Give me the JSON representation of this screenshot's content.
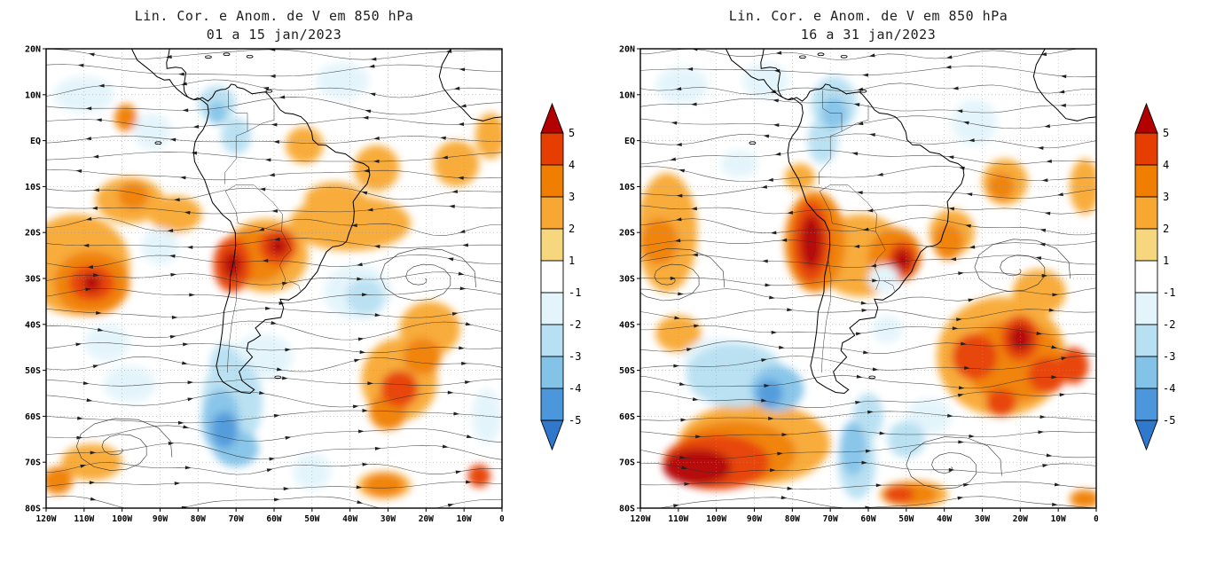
{
  "colorbar": {
    "labels": [
      "5",
      "4",
      "3",
      "2",
      "1",
      "-1",
      "-2",
      "-3",
      "-4",
      "-5"
    ],
    "colors": [
      "#b30000",
      "#e63e00",
      "#f07e00",
      "#f8a832",
      "#f6d77e",
      "#ffffff",
      "#e3f4fb",
      "#b7e0f2",
      "#83c3e8",
      "#4c97db",
      "#2f78cc"
    ]
  },
  "chart_data": [
    {
      "type": "heatmap",
      "title": "Lin. Cor. e Anom. de V em 850 hPa",
      "subtitle": "01 a 15 jan/2023",
      "x_ticks": [
        "120W",
        "110W",
        "100W",
        "90W",
        "80W",
        "70W",
        "60W",
        "50W",
        "40W",
        "30W",
        "20W",
        "10W",
        "0"
      ],
      "y_ticks": [
        "20N",
        "10N",
        "EQ",
        "10S",
        "20S",
        "30S",
        "40S",
        "50S",
        "60S",
        "70S",
        "80S"
      ],
      "xlabel": "",
      "ylabel": "",
      "anomaly_blobs": [
        [
          112,
          -27,
          14,
          11,
          2
        ],
        [
          98,
          -13,
          9,
          5,
          2
        ],
        [
          86,
          -16,
          7,
          4,
          2
        ],
        [
          40,
          -18,
          16,
          6,
          2
        ],
        [
          52,
          -1,
          5,
          4,
          2
        ],
        [
          33,
          -6,
          6,
          5,
          2
        ],
        [
          12,
          -5,
          6,
          5,
          2
        ],
        [
          3,
          1,
          4,
          5,
          2
        ],
        [
          62,
          -25,
          11,
          8,
          2
        ],
        [
          19,
          -41,
          8,
          6,
          2
        ],
        [
          27,
          -52,
          10,
          9,
          2
        ],
        [
          108,
          -70,
          8,
          4,
          2
        ],
        [
          31,
          -75,
          7,
          3,
          2
        ],
        [
          44,
          -13,
          8,
          4,
          2
        ],
        [
          97,
          -12,
          4,
          3,
          3
        ],
        [
          65,
          -25,
          9,
          6,
          3
        ],
        [
          108,
          -31,
          10,
          7,
          3
        ],
        [
          30,
          -59,
          5,
          4,
          3
        ],
        [
          21,
          -47,
          5,
          4,
          3
        ],
        [
          117,
          -74,
          4,
          3,
          3
        ],
        [
          99,
          5,
          3,
          3,
          3
        ],
        [
          31,
          -75,
          5,
          2.5,
          3
        ],
        [
          108,
          -31,
          6,
          4,
          4
        ],
        [
          71,
          -27,
          5,
          6,
          4
        ],
        [
          59,
          -23,
          5,
          4,
          4
        ],
        [
          27,
          -54,
          5,
          4,
          4
        ],
        [
          6,
          -73,
          3,
          2.5,
          4
        ],
        [
          71,
          -27,
          2.5,
          3,
          5
        ],
        [
          59,
          -23,
          2.5,
          2,
          5
        ],
        [
          108,
          -31,
          2.5,
          2,
          5
        ],
        [
          110,
          10,
          8,
          4,
          -2
        ],
        [
          42,
          13,
          7,
          4,
          -2
        ],
        [
          92,
          2,
          5,
          4,
          -2
        ],
        [
          90,
          -23,
          5,
          4,
          -2
        ],
        [
          98,
          -53,
          7,
          4,
          -2
        ],
        [
          63,
          -47,
          8,
          5,
          -2
        ],
        [
          38,
          -33,
          9,
          6,
          -2
        ],
        [
          50,
          -72,
          5,
          4,
          -2
        ],
        [
          4,
          -60,
          4,
          6,
          -2
        ],
        [
          104,
          -44,
          6,
          4,
          -2
        ],
        [
          75,
          8,
          5,
          4,
          -3
        ],
        [
          70,
          1,
          4,
          4,
          -3
        ],
        [
          36,
          -34,
          5,
          4,
          -3
        ],
        [
          73,
          -50,
          4,
          6,
          -3
        ],
        [
          71,
          -57,
          8,
          10,
          -3
        ],
        [
          74,
          -61,
          5,
          7,
          -4
        ],
        [
          70,
          -67,
          6,
          4,
          -4
        ],
        [
          75,
          6,
          2.5,
          2.5,
          -4
        ],
        [
          73,
          -63,
          3.5,
          4,
          -5
        ]
      ],
      "vortices": [
        [
          21,
          -30
        ],
        [
          101,
          -67
        ]
      ]
    },
    {
      "type": "heatmap",
      "title": "Lin. Cor. e Anom. de V em 850 hPa",
      "subtitle": "16 a 31 jan/2023",
      "x_ticks": [
        "120W",
        "110W",
        "100W",
        "90W",
        "80W",
        "70W",
        "60W",
        "50W",
        "40W",
        "30W",
        "20W",
        "10W",
        "0"
      ],
      "y_ticks": [
        "20N",
        "10N",
        "EQ",
        "10S",
        "20S",
        "30S",
        "40S",
        "50S",
        "60S",
        "70S",
        "80S"
      ],
      "xlabel": "",
      "ylabel": "",
      "anomaly_blobs": [
        [
          113,
          -20,
          8,
          13,
          2
        ],
        [
          62,
          -25,
          12,
          9,
          2
        ],
        [
          38,
          -20,
          6,
          5,
          2
        ],
        [
          24,
          -9,
          6,
          5,
          2
        ],
        [
          25,
          -47,
          17,
          13,
          2
        ],
        [
          15,
          -33,
          7,
          5,
          2
        ],
        [
          90,
          -66,
          20,
          9,
          2
        ],
        [
          48,
          -77,
          9,
          3,
          2
        ],
        [
          78,
          -8,
          4,
          3,
          2
        ],
        [
          3,
          -10,
          4,
          6,
          2
        ],
        [
          110,
          -42,
          6,
          4,
          2
        ],
        [
          115,
          -22,
          5,
          5,
          3
        ],
        [
          74,
          -22,
          8,
          11,
          3
        ],
        [
          53,
          -25,
          7,
          6,
          3
        ],
        [
          25,
          -10,
          3.5,
          3,
          3
        ],
        [
          39,
          -22,
          4,
          4,
          3
        ],
        [
          22,
          -48,
          13,
          9,
          3
        ],
        [
          95,
          -68,
          16,
          7,
          3
        ],
        [
          48,
          -77,
          6,
          2.5,
          3
        ],
        [
          3,
          -78,
          4,
          2,
          3
        ],
        [
          75,
          -22,
          5,
          9,
          4
        ],
        [
          51,
          -26,
          4,
          4,
          4
        ],
        [
          32,
          -47,
          6,
          5,
          4
        ],
        [
          20,
          -43,
          5,
          5,
          4
        ],
        [
          13,
          -51,
          5,
          4,
          4
        ],
        [
          25,
          -57,
          4,
          3,
          4
        ],
        [
          6,
          -49,
          4,
          4,
          4
        ],
        [
          100,
          -70,
          14,
          6,
          4
        ],
        [
          52,
          -77,
          4,
          2,
          4
        ],
        [
          75,
          -22,
          3,
          6,
          5
        ],
        [
          51,
          -26,
          2.5,
          2.5,
          5
        ],
        [
          20,
          -43,
          3,
          3,
          5
        ],
        [
          105,
          -71,
          9,
          4,
          5
        ],
        [
          109,
          12,
          7,
          4,
          -2
        ],
        [
          87,
          13,
          6,
          4,
          -2
        ],
        [
          32,
          4,
          6,
          5,
          -2
        ],
        [
          100,
          -48,
          9,
          5,
          -2
        ],
        [
          44,
          -60,
          6,
          4,
          -2
        ],
        [
          55,
          -41,
          4,
          3,
          -2
        ],
        [
          56,
          -30,
          4,
          3,
          -2
        ],
        [
          94,
          -5,
          5,
          3,
          -2
        ],
        [
          69,
          8,
          6,
          6,
          -3
        ],
        [
          72,
          0,
          4,
          5,
          -3
        ],
        [
          95,
          -51,
          13,
          7,
          -3
        ],
        [
          60,
          -60,
          4,
          5,
          -3
        ],
        [
          50,
          -65,
          5,
          4,
          -3
        ],
        [
          63,
          -70,
          5,
          8,
          -3
        ],
        [
          69,
          6,
          3.5,
          3.5,
          -4
        ],
        [
          84,
          -54,
          7,
          5,
          -4
        ],
        [
          64,
          -67,
          3.5,
          6,
          -4
        ],
        [
          86,
          -55,
          3.5,
          3,
          -5
        ]
      ],
      "vortices": [
        [
          21,
          -28
        ],
        [
          39,
          -71
        ],
        [
          112,
          -30
        ]
      ]
    }
  ]
}
